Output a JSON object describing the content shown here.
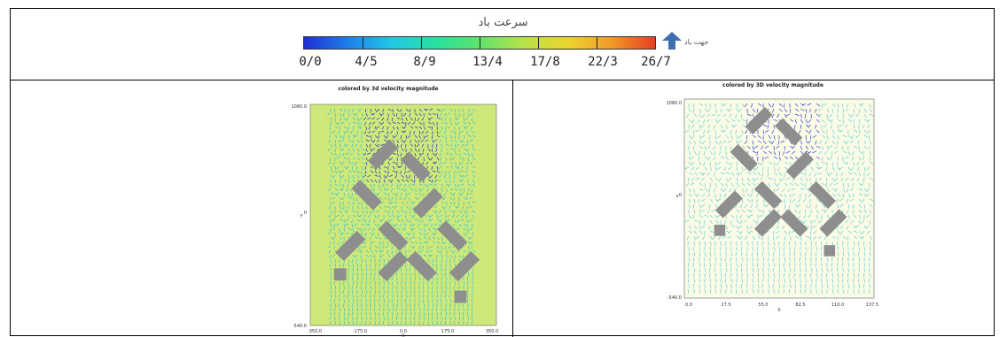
{
  "legend": {
    "title": "سرعت باد",
    "tick_labels": [
      "0/0",
      "4/5",
      "8/9",
      "13/4",
      "17/8",
      "22/3",
      "26/7"
    ],
    "gradient_colors": [
      "#1f2fd2",
      "#1d7fe8",
      "#22c7e6",
      "#2ae0a0",
      "#5ee36a",
      "#b7e24a",
      "#ecd531",
      "#f19a2a",
      "#e3401e"
    ],
    "wind_direction_label": "جهت باد",
    "wind_arrow_color": "#3f6fb0"
  },
  "plots": [
    {
      "title": "colored by 3d velocity magnitude",
      "subtitle_lines": [
        "",
        ""
      ],
      "y_ticks": [
        "1080.0",
        "0",
        "-540.0"
      ],
      "x_ticks": [
        "-350.0",
        "-175.0",
        "0.0",
        "175.0",
        "350.0"
      ],
      "x_label": "X",
      "y_label": "Y",
      "colors": {
        "background": "#cfe87a",
        "fast": "#1b35c7",
        "medium": "#2bc6d8",
        "building": "#8e8e8e"
      }
    },
    {
      "title": "colored by 3D velocity magnitude",
      "subtitle_lines": [
        "",
        ""
      ],
      "y_ticks": [
        "1080.0",
        "0",
        "-540.0"
      ],
      "x_ticks": [
        "0.0",
        "27.5",
        "55.0",
        "82.5",
        "110.0",
        "137.5"
      ],
      "x_label": "X",
      "y_label": "Y",
      "colors": {
        "background": "#fbfbe6",
        "fast": "#2a3fd4",
        "medium": "#5fd0d8",
        "building": "#8e8e8e"
      }
    }
  ]
}
